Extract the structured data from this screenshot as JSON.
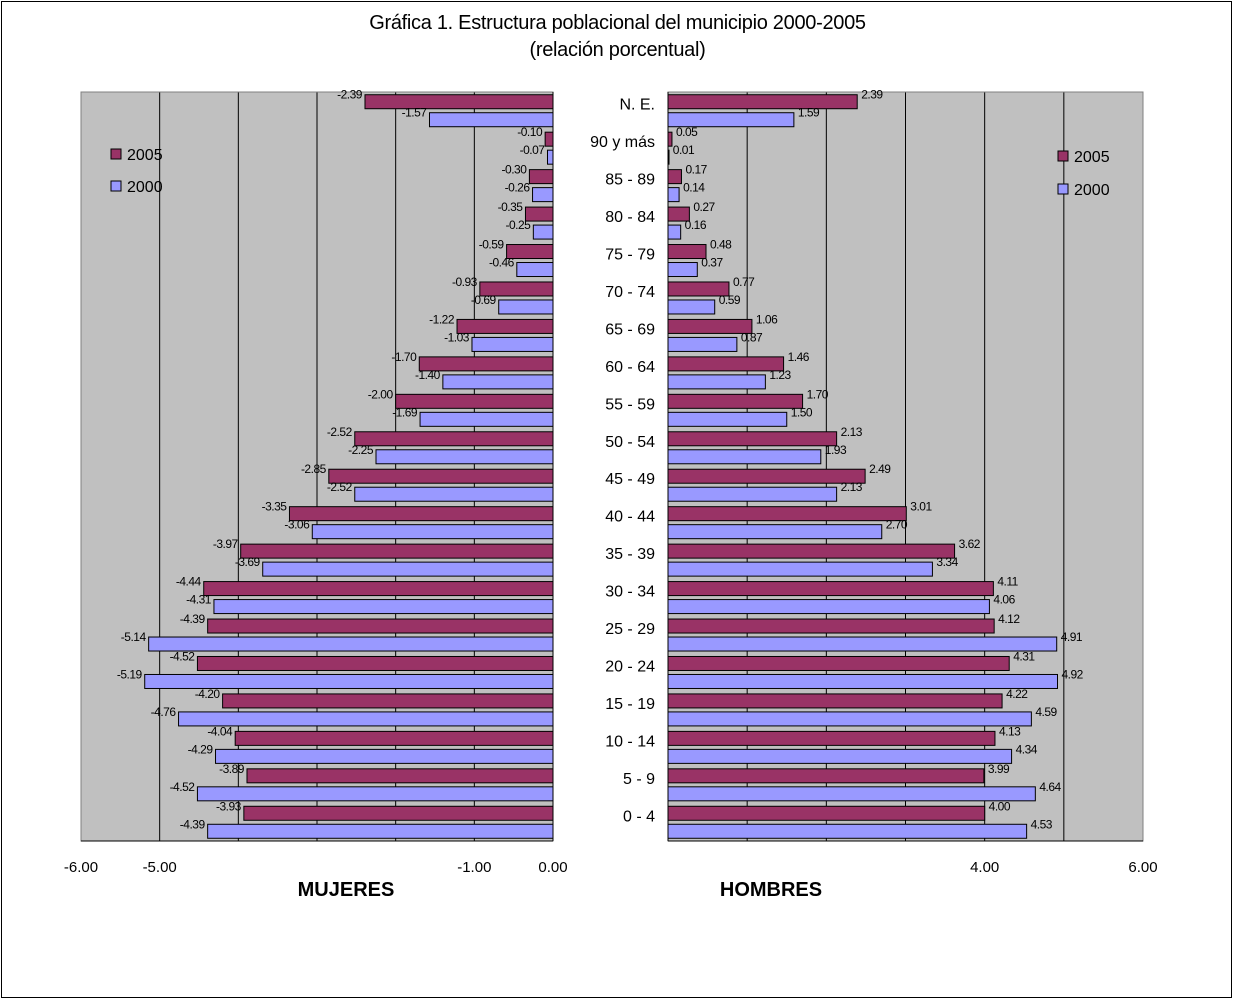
{
  "chart_data": {
    "type": "bar",
    "orientation": "horizontal",
    "title": "Gráfica 1. Estructura poblacional del municipio 2000-2005",
    "subtitle": "(relación porcentual)",
    "categories": [
      "N. E.",
      "90 y más",
      "85 - 89",
      "80 - 84",
      "75 - 79",
      "70 - 74",
      "65 - 69",
      "60 - 64",
      "55 - 59",
      "50 - 54",
      "45 - 49",
      "40 - 44",
      "35 - 39",
      "30 - 34",
      "25 - 29",
      "20 - 24",
      "15 - 19",
      "10 - 14",
      "5 - 9",
      "0 - 4"
    ],
    "panels": [
      {
        "name": "MUJERES",
        "xlim": [
          -6,
          0
        ],
        "x_ticks": [
          "-6.00",
          "-5.00",
          "",
          "",
          "",
          "-1.00",
          "0.00"
        ],
        "legend": "top-left",
        "series": [
          {
            "name": "2005",
            "values": [
              -2.39,
              -0.1,
              -0.3,
              -0.35,
              -0.59,
              -0.93,
              -1.22,
              -1.7,
              -2.0,
              -2.52,
              -2.85,
              -3.35,
              -3.97,
              -4.44,
              -4.39,
              -4.52,
              -4.2,
              -4.04,
              -3.89,
              -3.93
            ],
            "labels": [
              "-2.39",
              "-0.10",
              "-0.30",
              "-0.35",
              "-0.59",
              "-0.93",
              "-1.22",
              "-1.70",
              "-2.00",
              "-2.52",
              "-2.85",
              "-3.35",
              "-3.97",
              "-4.44",
              "-4.39",
              "-4.52",
              "-4.20",
              "-4.04",
              "-3.89",
              "-3.93"
            ]
          },
          {
            "name": "2000",
            "values": [
              -1.57,
              -0.07,
              -0.26,
              -0.25,
              -0.46,
              -0.69,
              -1.03,
              -1.4,
              -1.69,
              -2.25,
              -2.52,
              -3.06,
              -3.69,
              -4.31,
              -5.14,
              -5.19,
              -4.76,
              -4.29,
              -4.52,
              -4.39
            ],
            "labels": [
              "-1.57",
              "-0.07",
              "-0.26",
              "-0.25",
              "-0.46",
              "-0.69",
              "-1.03",
              "-1.40",
              "-1.69",
              "-2.25",
              "-2.52",
              "-3.06",
              "-3.69",
              "-4.31",
              "-5.14",
              "-5.19",
              "-4.76",
              "-4.29",
              "-4.52",
              "-4.39"
            ]
          }
        ]
      },
      {
        "name": "HOMBRES",
        "xlim": [
          0,
          6
        ],
        "x_ticks": [
          "",
          "",
          "4.00",
          "6.00"
        ],
        "legend": "top-right",
        "series": [
          {
            "name": "2005",
            "values": [
              2.39,
              0.05,
              0.17,
              0.27,
              0.48,
              0.77,
              1.06,
              1.46,
              1.7,
              2.13,
              2.49,
              3.01,
              3.62,
              4.11,
              4.12,
              4.31,
              4.22,
              4.13,
              3.99,
              4.0
            ],
            "labels": [
              "2.39",
              "0.05",
              "0.17",
              "0.27",
              "0.48",
              "0.77",
              "1.06",
              "1.46",
              "1.70",
              "2.13",
              "2.49",
              "3.01",
              "3.62",
              "4.11",
              "4.12",
              "4.31",
              "4.22",
              "4.13",
              "3.99",
              "4.00"
            ]
          },
          {
            "name": "2000",
            "values": [
              1.59,
              0.01,
              0.14,
              0.16,
              0.37,
              0.59,
              0.87,
              1.23,
              1.5,
              1.93,
              2.13,
              2.7,
              3.34,
              4.06,
              4.91,
              4.92,
              4.59,
              4.34,
              4.64,
              4.53
            ],
            "labels": [
              "1.59",
              "0.01",
              "0.14",
              "0.16",
              "0.37",
              "0.59",
              "0.87",
              "1.23",
              "1.50",
              "1.93",
              "2.13",
              "2.70",
              "3.34",
              "4.06",
              "4.91",
              "4.92",
              "4.59",
              "4.34",
              "4.64",
              "4.53"
            ]
          }
        ]
      }
    ],
    "grid": true,
    "colors": {
      "2005": "#993366",
      "2000": "#9999ff",
      "plot_bg": "#c0c0c0"
    }
  }
}
